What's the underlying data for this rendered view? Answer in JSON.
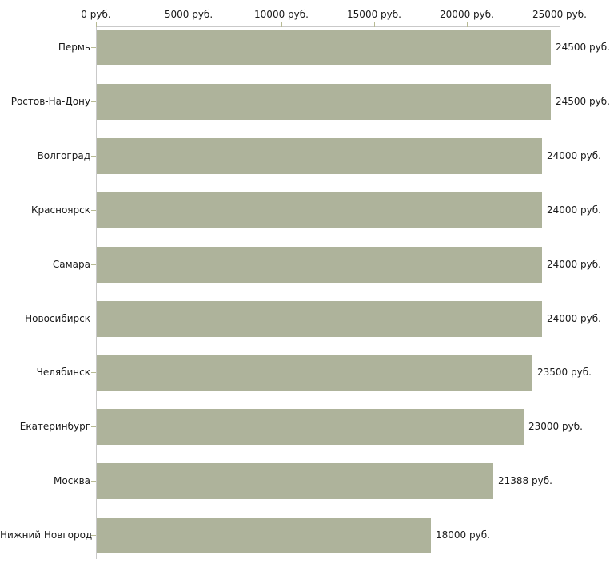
{
  "chart_data": {
    "type": "bar",
    "orientation": "horizontal",
    "unit": "руб.",
    "categories": [
      "Пермь",
      "Ростов-На-Дону",
      "Волгоград",
      "Красноярск",
      "Самара",
      "Новосибирск",
      "Челябинск",
      "Екатеринбург",
      "Москва",
      "Нижний Новгород"
    ],
    "values": [
      24500,
      24500,
      24000,
      24000,
      24000,
      24000,
      23500,
      23000,
      21388,
      18000
    ],
    "value_labels": [
      "24500 руб.",
      "24500 руб.",
      "24000 руб.",
      "24000 руб.",
      "24000 руб.",
      "24000 руб.",
      "23500 руб.",
      "23000 руб.",
      "21388 руб.",
      "18000 руб."
    ],
    "x_axis": {
      "position": "top",
      "range": [
        0,
        25000
      ],
      "ticks": [
        0,
        5000,
        10000,
        15000,
        20000,
        25000
      ],
      "tick_labels": [
        "0 руб.",
        "5000 руб.",
        "10000 руб.",
        "15000 руб.",
        "20000 руб.",
        "25000 руб."
      ]
    },
    "grid": false,
    "legend": false,
    "colors": {
      "bar": "#aeb39b",
      "axis_line": "#c9c9c9",
      "tick_mark": "#b7ba93",
      "text": "#1a1a1a",
      "background": "#ffffff"
    }
  }
}
